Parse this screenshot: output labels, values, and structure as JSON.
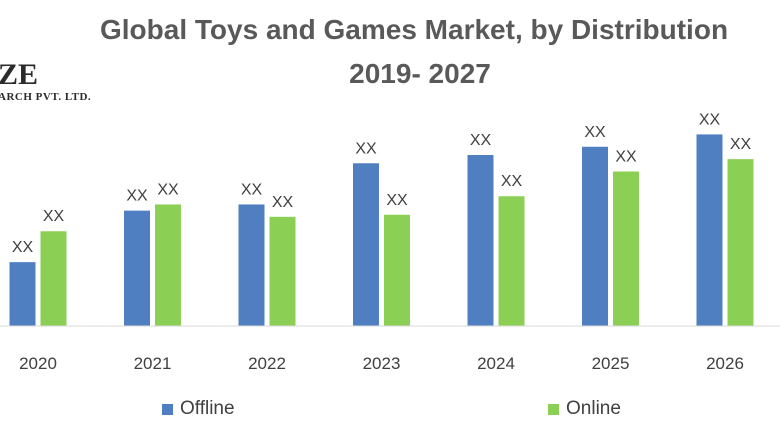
{
  "logo": {
    "name_fragment": "ZE",
    "subtitle_fragment": "ARCH PVT. LTD."
  },
  "colors": {
    "offline": "#4f7fc1",
    "online": "#8ccf55",
    "title": "#595959",
    "axis": "#d9d9d9"
  },
  "chart_data": {
    "type": "bar",
    "title": "Global Toys and Games Market, by Distribution",
    "subtitle": "2019- 2027",
    "categories": [
      "2020",
      "2021",
      "2022",
      "2023",
      "2024",
      "2025",
      "2026"
    ],
    "series": [
      {
        "name": "Offline",
        "values": [
          31,
          56,
          59,
          79,
          83,
          87,
          93
        ],
        "labels": [
          "XX",
          "XX",
          "XX",
          "XX",
          "XX",
          "XX",
          "XX"
        ]
      },
      {
        "name": "Online",
        "values": [
          46,
          59,
          53,
          54,
          63,
          75,
          81
        ],
        "labels": [
          "XX",
          "XX",
          "XX",
          "XX",
          "XX",
          "XX",
          "XX"
        ]
      }
    ],
    "ylim": [
      0,
      100
    ],
    "xlabel": "",
    "ylabel": "",
    "grid": false,
    "legend": "bottom"
  }
}
